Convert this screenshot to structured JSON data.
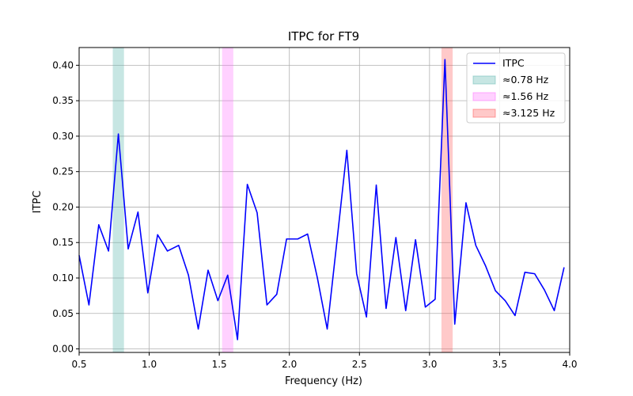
{
  "chart_data": {
    "type": "line",
    "title": "ITPC for FT9",
    "xlabel": "Frequency (Hz)",
    "ylabel": "ITPC",
    "xlim": [
      0.5,
      4.0
    ],
    "ylim": [
      -0.005,
      0.425
    ],
    "xticks": [
      0.5,
      1.0,
      1.5,
      2.0,
      2.5,
      3.0,
      3.5,
      4.0
    ],
    "xtick_labels": [
      "0.5",
      "1.0",
      "1.5",
      "2.0",
      "2.5",
      "3.0",
      "3.5",
      "4.0"
    ],
    "yticks": [
      0.0,
      0.05,
      0.1,
      0.15,
      0.2,
      0.25,
      0.3,
      0.35,
      0.4
    ],
    "ytick_labels": [
      "0.00",
      "0.05",
      "0.10",
      "0.15",
      "0.20",
      "0.25",
      "0.30",
      "0.35",
      "0.40"
    ],
    "grid": true,
    "legend_position": "top-right",
    "series": [
      {
        "name": "ITPC",
        "color": "#0000ff",
        "x": [
          0.5,
          0.57,
          0.64,
          0.71,
          0.78,
          0.85,
          0.92,
          0.99,
          1.06,
          1.13,
          1.21,
          1.28,
          1.35,
          1.42,
          1.49,
          1.56,
          1.63,
          1.7,
          1.77,
          1.84,
          1.91,
          1.98,
          2.06,
          2.13,
          2.2,
          2.27,
          2.34,
          2.41,
          2.48,
          2.55,
          2.62,
          2.69,
          2.76,
          2.83,
          2.9,
          2.97,
          3.04,
          3.11,
          3.18,
          3.26,
          3.33,
          3.4,
          3.47,
          3.54,
          3.61,
          3.68,
          3.75,
          3.82,
          3.89,
          3.96
        ],
        "y": [
          0.132,
          0.062,
          0.175,
          0.138,
          0.303,
          0.141,
          0.193,
          0.079,
          0.161,
          0.138,
          0.146,
          0.104,
          0.028,
          0.111,
          0.068,
          0.104,
          0.013,
          0.232,
          0.192,
          0.062,
          0.077,
          0.155,
          0.155,
          0.162,
          0.1,
          0.028,
          0.153,
          0.28,
          0.106,
          0.045,
          0.231,
          0.057,
          0.157,
          0.054,
          0.154,
          0.059,
          0.07,
          0.408,
          0.035,
          0.206,
          0.146,
          0.117,
          0.082,
          0.068,
          0.047,
          0.108,
          0.106,
          0.083,
          0.054,
          0.115
        ]
      }
    ],
    "bands": [
      {
        "label": "≈0.78 Hz",
        "x0": 0.74,
        "x1": 0.82,
        "color": "#5fb8b0",
        "opacity": 0.35
      },
      {
        "label": "≈1.56 Hz",
        "x0": 1.52,
        "x1": 1.6,
        "color": "#ff66ff",
        "opacity": 0.3
      },
      {
        "label": "≈3.125 Hz",
        "x0": 3.085,
        "x1": 3.165,
        "color": "#ff4d4d",
        "opacity": 0.3
      }
    ]
  }
}
